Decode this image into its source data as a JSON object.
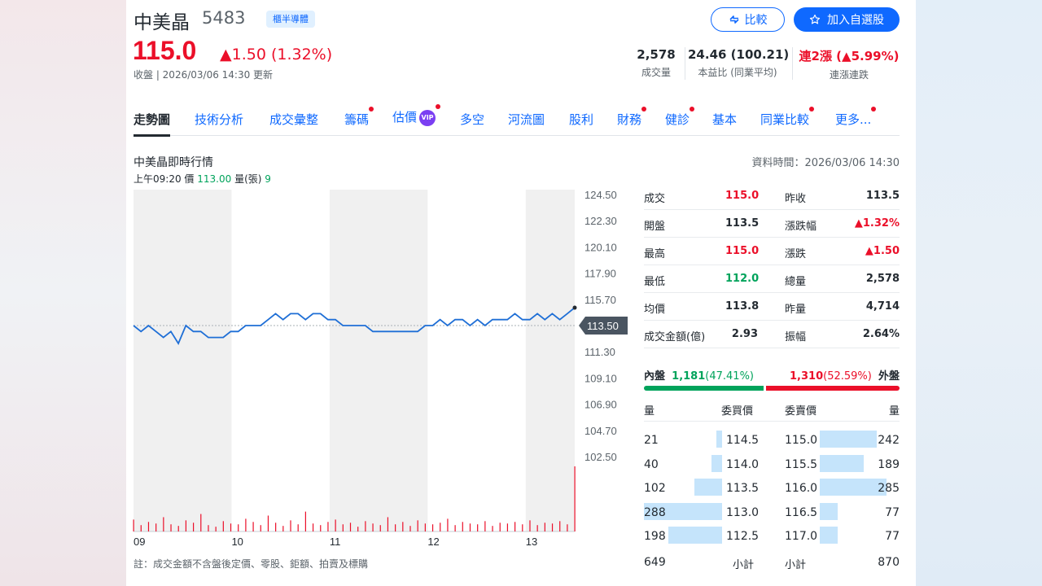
{
  "header": {
    "name": "中美晶",
    "code": "5483",
    "badge": "櫃半導體",
    "price": "115.0",
    "change": "▲1.50 (1.32%)",
    "status": "收盤 | 2026/03/06 14:30 更新",
    "compare_label": "比較",
    "watchlist_label": "加入自選股"
  },
  "stats": [
    {
      "value": "2,578",
      "label": "成交量"
    },
    {
      "value": "24.46 (100.21)",
      "label": "本益比 (同業平均)"
    },
    {
      "value": "連2漲 (▲5.99%)",
      "label": "連漲連跌"
    }
  ],
  "tabs": [
    {
      "label": "走勢圖",
      "dot": false,
      "vip": false
    },
    {
      "label": "技術分析",
      "dot": false,
      "vip": false
    },
    {
      "label": "成交彙整",
      "dot": false,
      "vip": false
    },
    {
      "label": "籌碼",
      "dot": true,
      "vip": false
    },
    {
      "label": "估價",
      "dot": true,
      "vip": true
    },
    {
      "label": "多空",
      "dot": false,
      "vip": false
    },
    {
      "label": "河流圖",
      "dot": false,
      "vip": false
    },
    {
      "label": "股利",
      "dot": false,
      "vip": false
    },
    {
      "label": "財務",
      "dot": true,
      "vip": false
    },
    {
      "label": "健診",
      "dot": true,
      "vip": false
    },
    {
      "label": "基本",
      "dot": false,
      "vip": false
    },
    {
      "label": "同業比較",
      "dot": true,
      "vip": false
    },
    {
      "label": "更多...",
      "dot": true,
      "vip": false
    }
  ],
  "chart": {
    "title": "中美晶即時行情",
    "data_time": "資料時間：2026/03/06 14:30",
    "hover_time": "上午09:20",
    "hover_price_label": "價",
    "hover_price": "113.00",
    "hover_vol_label": "量(張)",
    "hover_vol": "9",
    "note": "註：成交金額不含盤後定價、零股、鉅額、拍賣及標購",
    "ref_label": "113.50"
  },
  "chart_data": {
    "type": "line",
    "title": "中美晶即時行情",
    "x_ticks": [
      "09",
      "10",
      "11",
      "12",
      "13"
    ],
    "y_ticks": [
      "124.50",
      "122.30",
      "120.10",
      "117.90",
      "115.70",
      "113.50",
      "111.30",
      "109.10",
      "106.90",
      "104.70",
      "102.50"
    ],
    "ylim": [
      102.5,
      124.5
    ],
    "reference": 113.5,
    "grid": true,
    "series": [
      {
        "values": [
          113.5,
          113.0,
          113.5,
          113.0,
          112.5,
          113.0,
          112.0,
          113.5,
          113.0,
          113.0,
          112.5,
          112.5,
          112.5,
          113.0,
          113.0,
          113.5,
          113.5,
          113.5,
          114.0,
          114.5,
          114.0,
          114.5,
          114.5,
          114.0,
          114.5,
          114.5,
          114.0,
          114.0,
          113.5,
          113.5,
          113.5,
          113.5,
          113.0,
          113.0,
          113.0,
          113.0,
          113.0,
          113.0,
          113.0,
          113.5,
          113.5,
          114.0,
          113.5,
          114.0,
          114.0,
          113.5,
          114.0,
          113.5,
          114.0,
          114.0,
          114.0,
          114.5,
          114.0,
          114.0,
          114.5,
          114.0,
          114.5,
          114.0,
          114.5,
          115.0
        ]
      }
    ],
    "volume": [
      15,
      8,
      12,
      10,
      18,
      9,
      7,
      14,
      11,
      22,
      8,
      6,
      13,
      10,
      9,
      16,
      12,
      8,
      20,
      11,
      7,
      14,
      9,
      25,
      10,
      8,
      12,
      15,
      9,
      11,
      6,
      13,
      10,
      8,
      18,
      9,
      12,
      7,
      14,
      10,
      9,
      11,
      16,
      8,
      12,
      10,
      9,
      13,
      7,
      11,
      10,
      12,
      9,
      14,
      8,
      11,
      10,
      13,
      9,
      82
    ]
  },
  "quote": [
    {
      "l1": "成交",
      "v1": "115.0",
      "c1": "#eb0f29",
      "l2": "昨收",
      "v2": "113.5",
      "c2": "#232a31"
    },
    {
      "l1": "開盤",
      "v1": "113.5",
      "c1": "#232a31",
      "l2": "漲跌幅",
      "v2": "▲1.32%",
      "c2": "#eb0f29"
    },
    {
      "l1": "最高",
      "v1": "115.0",
      "c1": "#eb0f29",
      "l2": "漲跌",
      "v2": "▲1.50",
      "c2": "#eb0f29"
    },
    {
      "l1": "最低",
      "v1": "112.0",
      "c1": "#00a35b",
      "l2": "總量",
      "v2": "2,578",
      "c2": "#232a31"
    },
    {
      "l1": "均價",
      "v1": "113.8",
      "c1": "#232a31",
      "l2": "昨量",
      "v2": "4,714",
      "c2": "#232a31"
    },
    {
      "l1": "成交金額(億)",
      "v1": "2.93",
      "c1": "#232a31",
      "l2": "振幅",
      "v2": "2.64%",
      "c2": "#232a31"
    }
  ],
  "inout": {
    "in_label": "內盤",
    "in_value": "1,181",
    "in_pct": "(47.41%)",
    "out_value": "1,310",
    "out_pct": "(52.59%)",
    "out_label": "外盤",
    "in_fraction": 0.4741
  },
  "orderbook": {
    "head_qty": "量",
    "head_bid": "委買價",
    "head_ask": "委賣價",
    "head_qty2": "量",
    "rows": [
      {
        "bid_qty": "21",
        "bid_price": "114.5",
        "ask_price": "115.0",
        "ask_qty": "242",
        "bid_n": 21,
        "ask_n": 242
      },
      {
        "bid_qty": "40",
        "bid_price": "114.0",
        "ask_price": "115.5",
        "ask_qty": "189",
        "bid_n": 40,
        "ask_n": 189
      },
      {
        "bid_qty": "102",
        "bid_price": "113.5",
        "ask_price": "116.0",
        "ask_qty": "285",
        "bid_n": 102,
        "ask_n": 285
      },
      {
        "bid_qty": "288",
        "bid_price": "113.0",
        "ask_price": "116.5",
        "ask_qty": "77",
        "bid_n": 288,
        "ask_n": 77
      },
      {
        "bid_qty": "198",
        "bid_price": "112.5",
        "ask_price": "117.0",
        "ask_qty": "77",
        "bid_n": 198,
        "ask_n": 77
      }
    ],
    "bid_total": "649",
    "bid_total_label": "小計",
    "ask_total_label": "小計",
    "ask_total": "870"
  },
  "colors": {
    "up": "#eb0f29",
    "down": "#00a35b",
    "accent": "#0f69ff",
    "line": "#1f6fd6"
  }
}
